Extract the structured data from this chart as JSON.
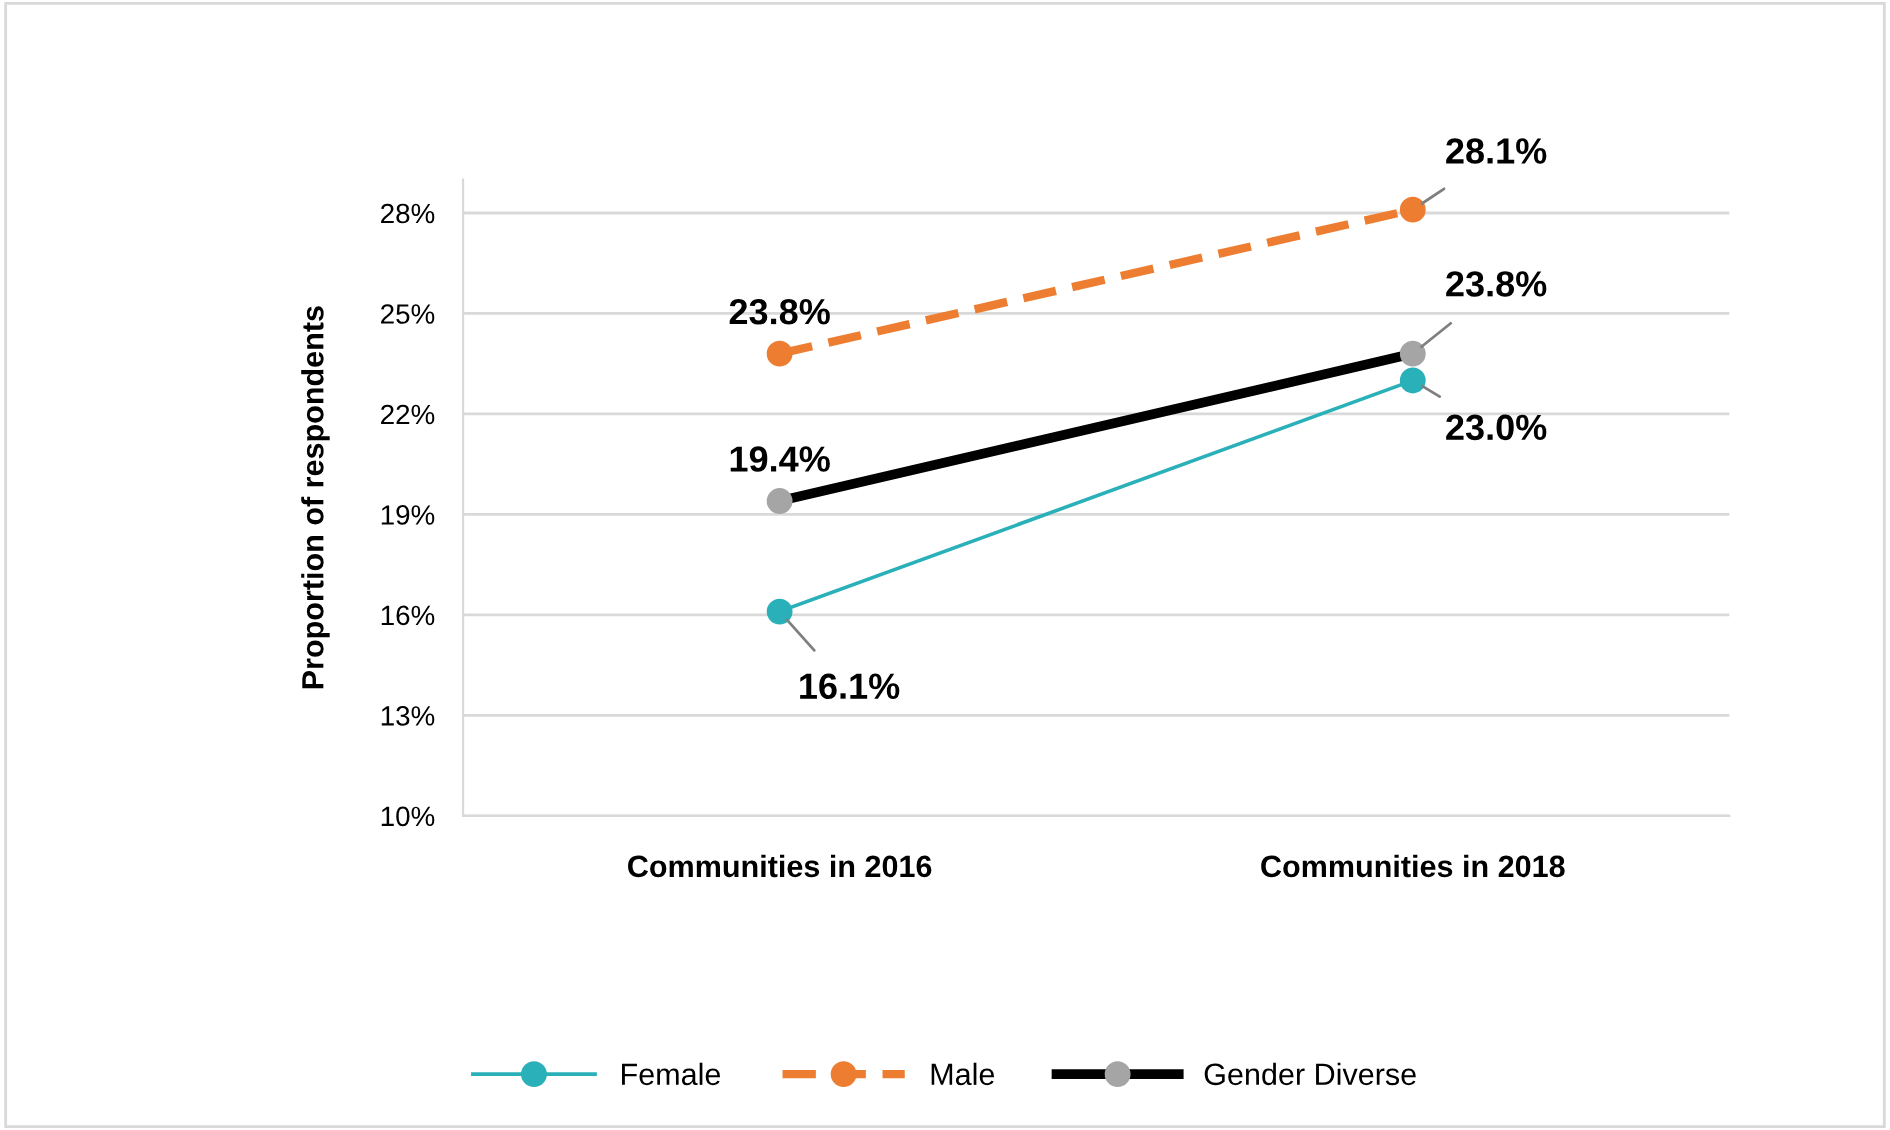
{
  "chart_data": {
    "type": "line",
    "ylabel": "Proportion of respondents",
    "categories": [
      "Communities in 2016",
      "Communities in 2018"
    ],
    "series": [
      {
        "name": "Female",
        "color": "#2ab0b8",
        "line_style": "solid",
        "values": [
          16.1,
          23.0
        ],
        "value_labels": [
          "16.1%",
          "23.0%"
        ]
      },
      {
        "name": "Male",
        "color": "#ed7d31",
        "line_style": "dashed",
        "values": [
          23.8,
          28.1
        ],
        "value_labels": [
          "23.8%",
          "28.1%"
        ]
      },
      {
        "name": "Gender Diverse",
        "color": "#000000",
        "line_style": "solid",
        "values": [
          19.4,
          23.8
        ],
        "value_labels": [
          "19.4%",
          "23.8%"
        ]
      }
    ],
    "ylim": [
      10,
      29
    ],
    "yticks": [
      {
        "value": 10,
        "label": "10%"
      },
      {
        "value": 13,
        "label": "13%"
      },
      {
        "value": 16,
        "label": "16%"
      },
      {
        "value": 19,
        "label": "19%"
      },
      {
        "value": 22,
        "label": "22%"
      },
      {
        "value": 25,
        "label": "25%"
      },
      {
        "value": 28,
        "label": "28%"
      }
    ],
    "grid": "y",
    "legend": "bottom",
    "marker": "circle"
  }
}
